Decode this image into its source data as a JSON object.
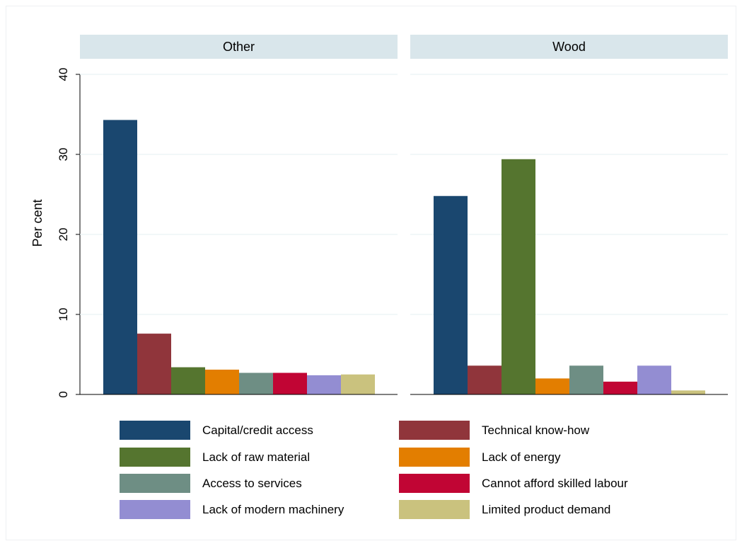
{
  "chart_data": {
    "type": "bar",
    "ylabel": "Per cent",
    "ylim": [
      0,
      40
    ],
    "yticks": [
      0,
      10,
      20,
      30,
      40
    ],
    "grid": true,
    "legend_position": "bottom",
    "series": [
      {
        "name": "Capital/credit access",
        "color": "#1a476f"
      },
      {
        "name": "Technical know-how",
        "color": "#90353b"
      },
      {
        "name": "Lack of raw material",
        "color": "#55752f"
      },
      {
        "name": "Lack of energy",
        "color": "#e37e00"
      },
      {
        "name": "Access to services",
        "color": "#6e8e84"
      },
      {
        "name": "Cannot afford skilled labour",
        "color": "#c10534"
      },
      {
        "name": "Lack of modern machinery",
        "color": "#938dd2"
      },
      {
        "name": "Limited product demand",
        "color": "#cac27e"
      }
    ],
    "panels": [
      {
        "title": "Other",
        "values": [
          34.3,
          7.6,
          3.4,
          3.1,
          2.7,
          2.7,
          2.4,
          2.5
        ]
      },
      {
        "title": "Wood",
        "values": [
          24.8,
          3.6,
          29.4,
          2.0,
          3.6,
          1.6,
          3.6,
          0.5
        ]
      }
    ]
  }
}
